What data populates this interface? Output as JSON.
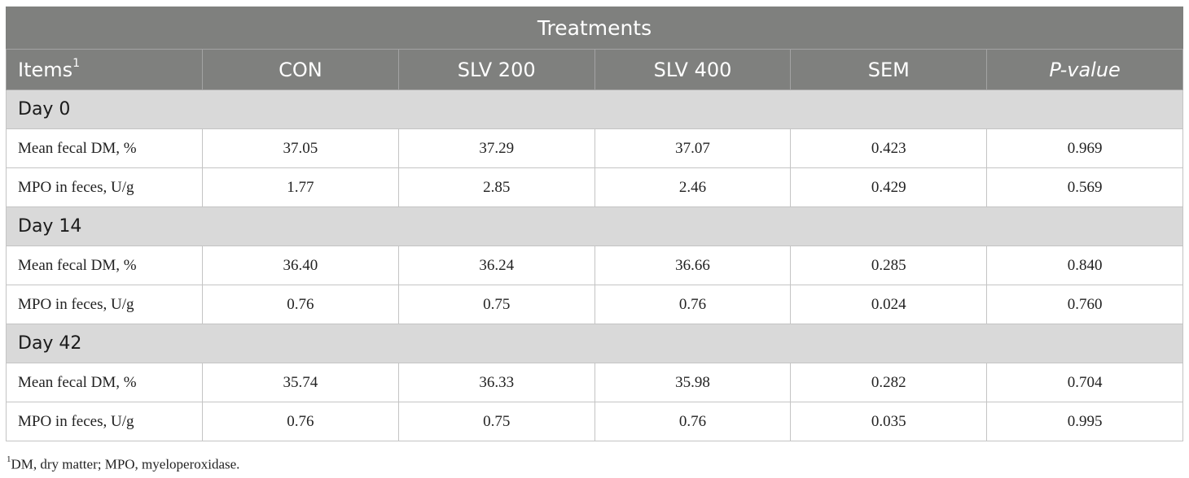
{
  "table": {
    "group_header": "Treatments",
    "columns": [
      "Items",
      "CON",
      "SLV 200",
      "SLV 400",
      "SEM",
      "P-value"
    ],
    "items_sup": "1",
    "groups": [
      {
        "label": "Day 0",
        "rows": [
          {
            "item": "Mean fecal DM, %",
            "values": [
              "37.05",
              "37.29",
              "37.07",
              "0.423",
              "0.969"
            ]
          },
          {
            "item": "MPO in feces, U/g",
            "values": [
              "1.77",
              "2.85",
              "2.46",
              "0.429",
              "0.569"
            ]
          }
        ]
      },
      {
        "label": "Day 14",
        "rows": [
          {
            "item": "Mean fecal DM, %",
            "values": [
              "36.40",
              "36.24",
              "36.66",
              "0.285",
              "0.840"
            ]
          },
          {
            "item": "MPO in feces, U/g",
            "values": [
              "0.76",
              "0.75",
              "0.76",
              "0.024",
              "0.760"
            ]
          }
        ]
      },
      {
        "label": "Day 42",
        "rows": [
          {
            "item": "Mean fecal DM, %",
            "values": [
              "35.74",
              "36.33",
              "35.98",
              "0.282",
              "0.704"
            ]
          },
          {
            "item": "MPO in feces, U/g",
            "values": [
              "0.76",
              "0.75",
              "0.76",
              "0.035",
              "0.995"
            ]
          }
        ]
      }
    ]
  },
  "footnote": {
    "sup": "1",
    "text": "DM, dry matter; MPO, myeloperoxidase."
  }
}
